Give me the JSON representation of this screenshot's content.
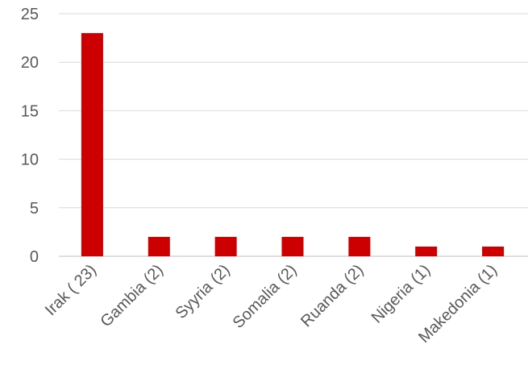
{
  "chart_data": {
    "type": "bar",
    "categories": [
      "Irak ( 23)",
      "Gambia (2)",
      "Syyria (2)",
      "Somalia (2)",
      "Ruanda (2)",
      "Nigeria (1)",
      "Makedonia (1)"
    ],
    "values": [
      23,
      2,
      2,
      2,
      2,
      1,
      1
    ],
    "ylim": [
      0,
      25
    ],
    "yticks": [
      "0",
      "5",
      "10",
      "15",
      "20",
      "25"
    ],
    "grid": true,
    "legend": "none",
    "bar_color": "#cc0000"
  }
}
